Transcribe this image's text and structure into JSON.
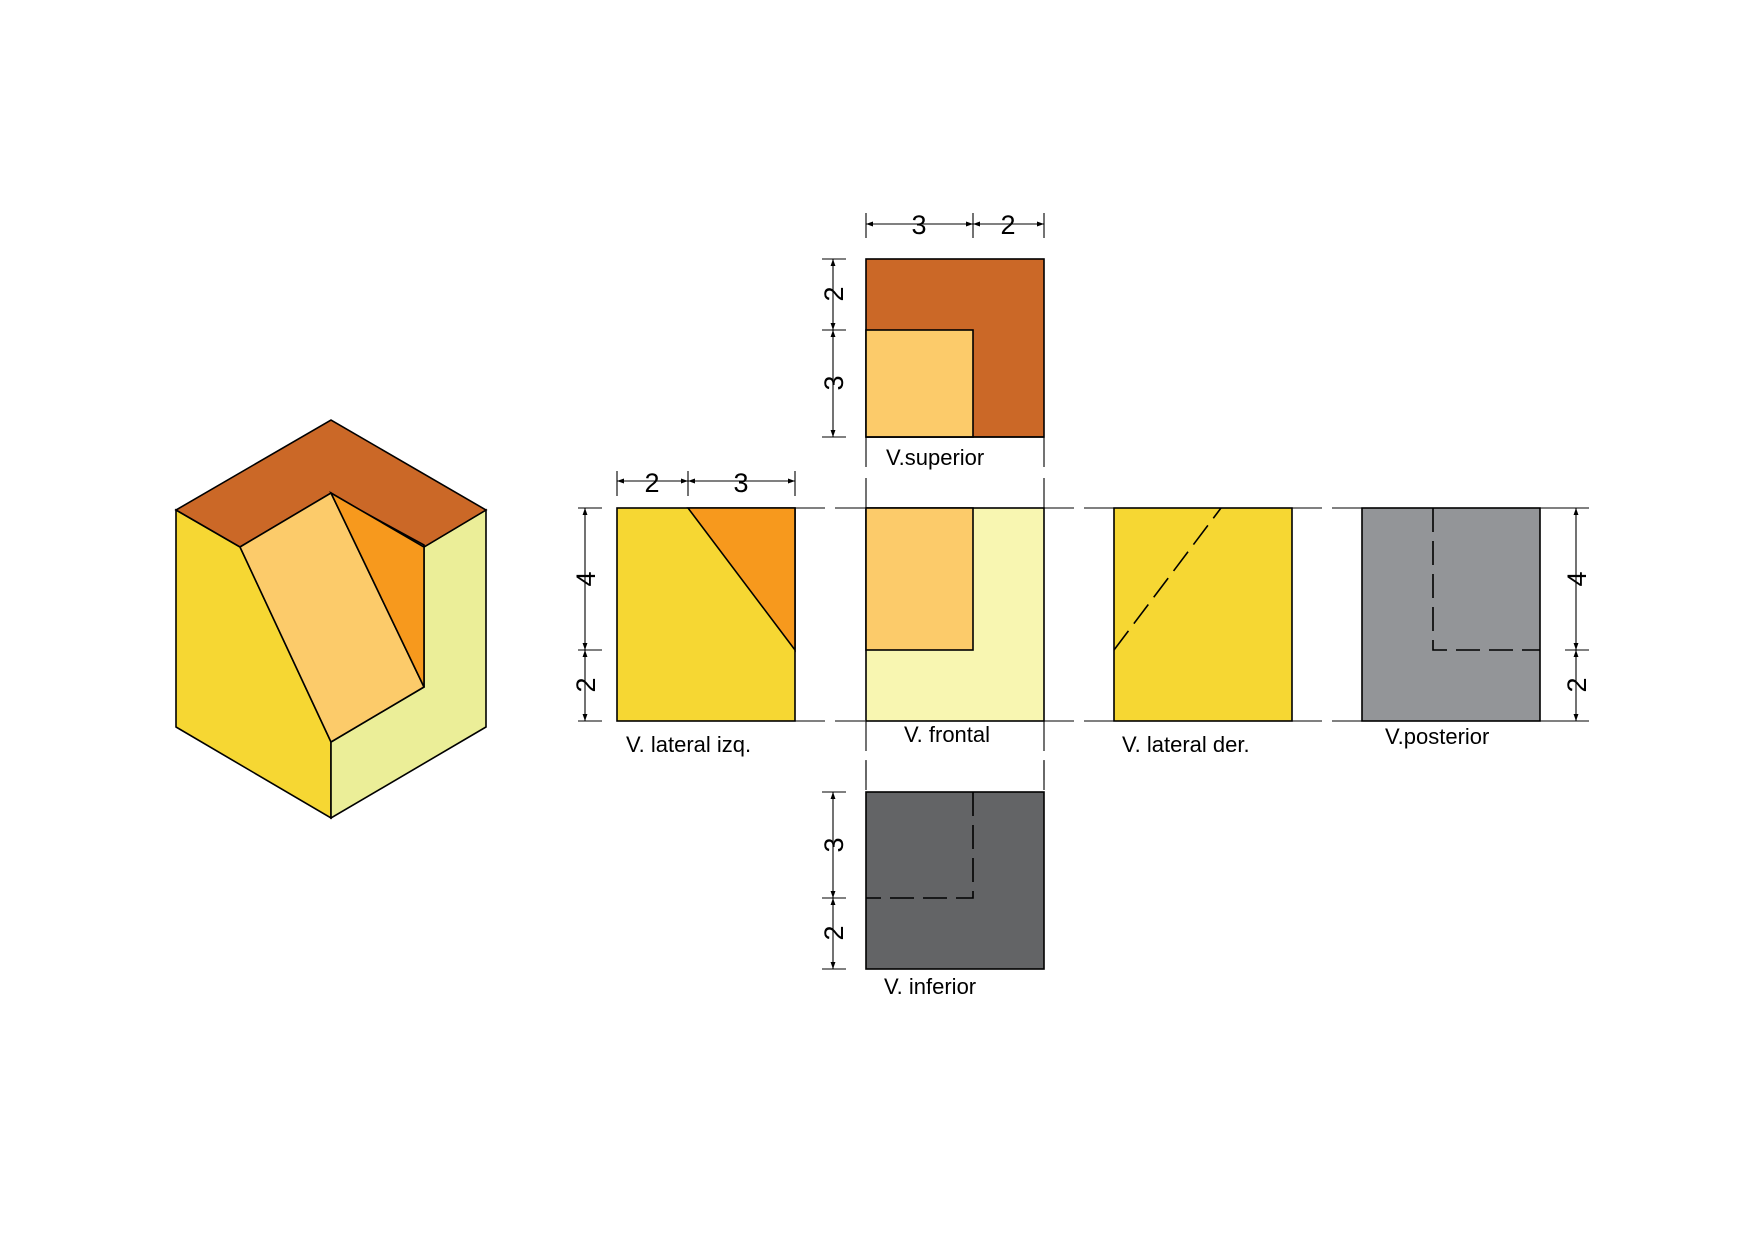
{
  "colors": {
    "top_dark": "#CB6827",
    "front_light": "#F8F6B1",
    "iso_right": "#EBEE98",
    "left_yellow": "#F6D733",
    "slope": "#FCCB6A",
    "orange": "#F7991D",
    "bottom_gray": "#636466",
    "back_gray": "#939598",
    "outline": "#000000"
  },
  "views": {
    "top": {
      "label": "V.superior",
      "dims_h": [
        "3",
        "2"
      ],
      "dims_v": [
        "2",
        "3"
      ]
    },
    "left": {
      "label": "V. lateral izq.",
      "dims_h": [
        "2",
        "3"
      ],
      "dims_v": [
        "4",
        "2"
      ]
    },
    "front": {
      "label": "V. frontal"
    },
    "right": {
      "label": "V. lateral der."
    },
    "back": {
      "label": "V.posterior",
      "dims_v": [
        "4",
        "2"
      ]
    },
    "bottom": {
      "label": "V. inferior",
      "dims_v": [
        "3",
        "2"
      ]
    }
  }
}
